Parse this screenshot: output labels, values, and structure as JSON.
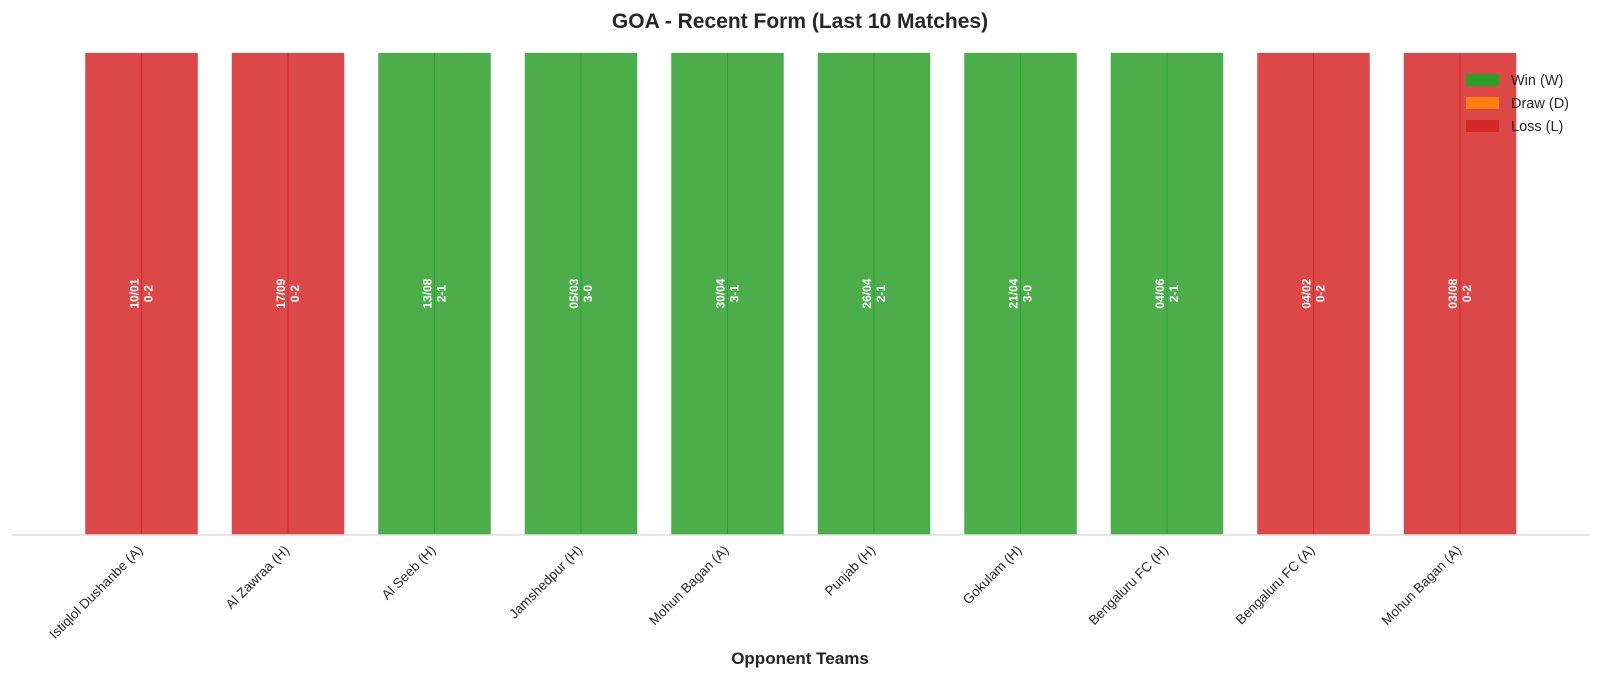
{
  "chart_data": {
    "type": "bar",
    "title": "GOA - Recent Form (Last 10 Matches)",
    "xlabel": "Opponent Teams",
    "ylabel": "",
    "categories": [
      "Istiqlol Dushanbe (A)",
      "Al Zawraa (H)",
      "Al Seeb (H)",
      "Jamshedpur (H)",
      "Mohun Bagan (A)",
      "Punjab (H)",
      "Gokulam (H)",
      "Bengaluru FC (H)",
      "Bengaluru FC (A)",
      "Mohun Bagan (A)"
    ],
    "values": [
      1,
      1,
      1,
      1,
      1,
      1,
      1,
      1,
      1,
      1
    ],
    "results": [
      "L",
      "L",
      "W",
      "W",
      "W",
      "W",
      "W",
      "W",
      "L",
      "L"
    ],
    "dates": [
      "10/01",
      "17/09",
      "13/08",
      "05/03",
      "30/04",
      "26/04",
      "21/04",
      "04/06",
      "04/02",
      "03/08"
    ],
    "scores": [
      "0-2",
      "0-2",
      "2-1",
      "3-0",
      "3-1",
      "2-1",
      "3-0",
      "2-1",
      "0-2",
      "0-2"
    ],
    "ylim": [
      0,
      1.05
    ],
    "grid": false,
    "legend": {
      "placement": "top-right",
      "entries": [
        {
          "key": "W",
          "label": "Win (W)",
          "color": "#2ca02c"
        },
        {
          "key": "D",
          "label": "Draw (D)",
          "color": "#ff7f0e"
        },
        {
          "key": "L",
          "label": "Loss (L)",
          "color": "#d62728"
        }
      ]
    }
  }
}
